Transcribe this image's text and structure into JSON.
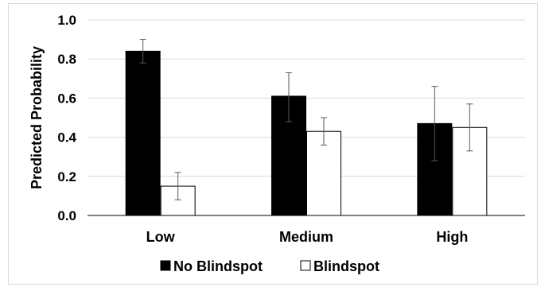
{
  "chart_data": {
    "type": "bar",
    "title": "",
    "xlabel": "",
    "ylabel": "Predicted Probability",
    "categories": [
      "Low",
      "Medium",
      "High"
    ],
    "ylim": [
      0.0,
      1.0
    ],
    "yticks": [
      "0.0",
      "0.2",
      "0.4",
      "0.6",
      "0.8",
      "1.0"
    ],
    "grid": true,
    "legend_position": "bottom",
    "series": [
      {
        "name": "No Blindspot",
        "fill": "#000000",
        "values": [
          0.84,
          0.61,
          0.47
        ],
        "error_low": [
          0.78,
          0.48,
          0.28
        ],
        "error_high": [
          0.9,
          0.73,
          0.66
        ]
      },
      {
        "name": "Blindspot",
        "fill": "#ffffff",
        "values": [
          0.15,
          0.43,
          0.45
        ],
        "error_low": [
          0.08,
          0.36,
          0.33
        ],
        "error_high": [
          0.22,
          0.5,
          0.57
        ]
      }
    ]
  },
  "colors": {
    "grid": "#d9d9d9",
    "axis": "#000000",
    "bar_outline": "#000000",
    "error_bar": "#595959"
  }
}
